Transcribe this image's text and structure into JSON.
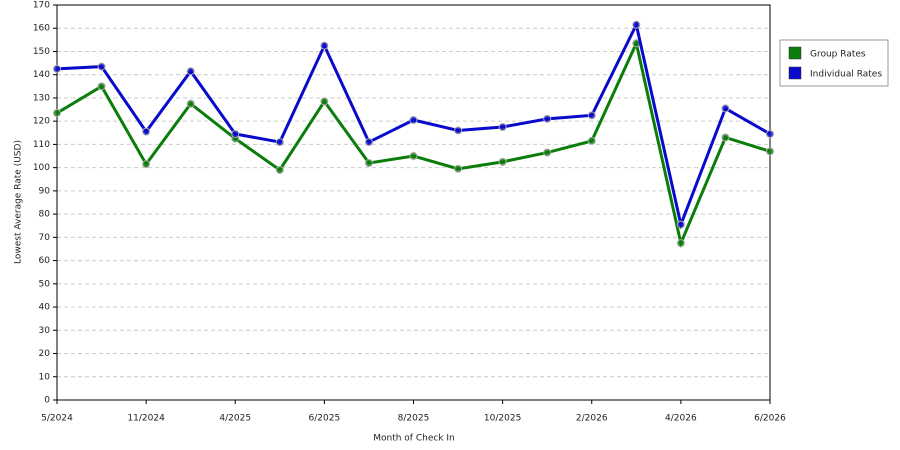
{
  "chart_data": {
    "type": "line",
    "categories": [
      "5/2024",
      null,
      "11/2024",
      null,
      "4/2025",
      null,
      "6/2025",
      null,
      "8/2025",
      null,
      "10/2025",
      null,
      "2/2026",
      null,
      "4/2026",
      null,
      "6/2026"
    ],
    "series": [
      {
        "name": "Group Rates",
        "color": "#0a7d0a",
        "values": [
          123.5,
          135,
          101.5,
          127.5,
          112.5,
          99,
          128.5,
          102,
          105,
          99.5,
          102.5,
          106.5,
          111.5,
          153.5,
          67.5,
          113,
          107
        ]
      },
      {
        "name": "Individual Rates",
        "color": "#0a0acc",
        "values": [
          142.5,
          143.5,
          115.5,
          141.5,
          114.5,
          111,
          152.5,
          111,
          120.5,
          116,
          117.5,
          121,
          122.5,
          161.5,
          75.5,
          125.5,
          114.5
        ]
      }
    ],
    "xlabel": "Month of Check In",
    "ylabel": "Lowest Average Rate (USD)",
    "ylim": [
      0,
      170
    ],
    "yticks": [
      0,
      10,
      20,
      30,
      40,
      50,
      60,
      70,
      80,
      90,
      100,
      110,
      120,
      130,
      140,
      150,
      160,
      170
    ],
    "grid": true,
    "legend": "right"
  }
}
